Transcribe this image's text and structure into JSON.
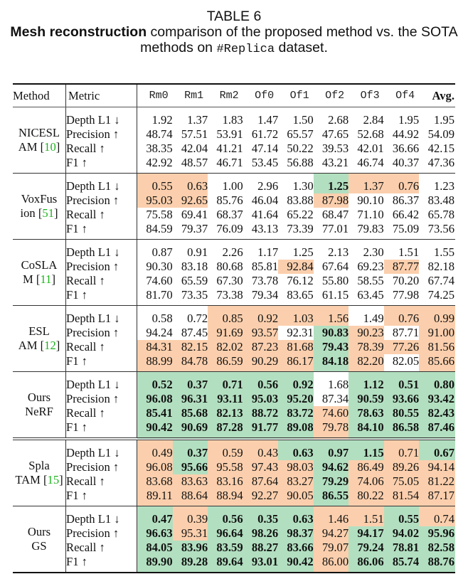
{
  "caption": {
    "table_label": "TABLE 6",
    "bold_part": "Mesh reconstruction",
    "text_part1": " comparison of the proposed method vs. the SOTA methods on ",
    "dataset": "#Replica",
    "text_part2": " dataset."
  },
  "header": {
    "method": "Method",
    "metric": "Metric",
    "scenes": [
      "Rm0",
      "Rm1",
      "Rm2",
      "Of0",
      "Of1",
      "Of2",
      "Of3",
      "Of4"
    ],
    "avg": "Avg."
  },
  "colors": {
    "orange_highlight": "#fbcfad",
    "green_highlight": "#b2dfc0",
    "citation": "#1db31d"
  },
  "metrics": [
    "Depth L1 ↓",
    "Precision ↑",
    "Recall ↑",
    "F1 ↑"
  ],
  "groups": [
    {
      "name_line1": "NICESL",
      "name_line2": "AM",
      "cite": "10",
      "rows": [
        [
          "1.92",
          "1.37",
          "1.83",
          "1.47",
          "1.50",
          "2.68",
          "2.84",
          "1.95",
          "1.95"
        ],
        [
          "48.74",
          "57.51",
          "53.91",
          "61.72",
          "65.57",
          "47.65",
          "52.68",
          "44.92",
          "54.09"
        ],
        [
          "38.35",
          "42.04",
          "41.21",
          "47.14",
          "50.22",
          "39.53",
          "42.01",
          "36.66",
          "42.15"
        ],
        [
          "42.92",
          "48.57",
          "46.71",
          "53.45",
          "56.88",
          "43.21",
          "46.74",
          "40.37",
          "47.36"
        ]
      ],
      "highlight": [
        "nnnnnnnnn",
        "nnnnnnnnn",
        "nnnnnnnnn",
        "nnnnnnnnn"
      ]
    },
    {
      "name_line1": "VoxFus",
      "name_line2": "ion",
      "cite": "51",
      "rows": [
        [
          "0.55",
          "0.63",
          "1.00",
          "2.96",
          "1.30",
          "1.25",
          "1.37",
          "0.76",
          "1.23"
        ],
        [
          "95.03",
          "92.65",
          "85.76",
          "46.04",
          "83.88",
          "87.98",
          "90.10",
          "86.37",
          "83.48"
        ],
        [
          "75.58",
          "69.41",
          "68.37",
          "41.64",
          "65.22",
          "68.47",
          "71.10",
          "66.42",
          "65.78"
        ],
        [
          "84.59",
          "79.37",
          "76.09",
          "43.13",
          "73.39",
          "77.01",
          "79.83",
          "75.09",
          "73.56"
        ]
      ],
      "highlight": [
        "oonnnGoon",
        "oonnnonnn",
        "nnnnnnnnn",
        "nnnnnnnnn"
      ]
    },
    {
      "name_line1": "CoSLA",
      "name_line2": "M",
      "cite": "11",
      "rows": [
        [
          "0.87",
          "0.91",
          "2.26",
          "1.17",
          "1.25",
          "2.13",
          "2.30",
          "1.51",
          "1.55"
        ],
        [
          "90.30",
          "83.18",
          "80.68",
          "85.81",
          "92.84",
          "67.64",
          "69.23",
          "87.77",
          "82.18"
        ],
        [
          "74.60",
          "65.59",
          "67.30",
          "73.78",
          "76.12",
          "55.80",
          "58.55",
          "70.20",
          "67.74"
        ],
        [
          "81.70",
          "73.35",
          "73.38",
          "79.34",
          "83.65",
          "61.15",
          "63.45",
          "77.98",
          "74.25"
        ]
      ],
      "highlight": [
        "nnnnnnnnn",
        "nnnnonnon",
        "nnnnnnnnn",
        "nnnnnnnnn"
      ]
    },
    {
      "name_line1": "ESL",
      "name_line2": "AM",
      "cite": "12",
      "rows": [
        [
          "0.58",
          "0.72",
          "0.85",
          "0.92",
          "1.03",
          "1.56",
          "1.49",
          "0.76",
          "0.99"
        ],
        [
          "94.24",
          "87.45",
          "91.69",
          "93.57",
          "92.31",
          "90.83",
          "90.23",
          "87.71",
          "91.00"
        ],
        [
          "84.31",
          "82.15",
          "82.02",
          "87.23",
          "81.68",
          "79.43",
          "78.39",
          "77.26",
          "81.56"
        ],
        [
          "88.99",
          "84.78",
          "86.59",
          "90.29",
          "86.17",
          "84.18",
          "82.20",
          "82.05",
          "85.66"
        ]
      ],
      "highlight": [
        "nnoooonoo",
        "nnoonGono",
        "oooooGooo",
        "oooooGono"
      ]
    },
    {
      "name_line1": "Ours",
      "name_line2": "NeRF",
      "cite": "",
      "rows": [
        [
          "0.52",
          "0.37",
          "0.71",
          "0.56",
          "0.92",
          "1.68",
          "1.12",
          "0.51",
          "0.80"
        ],
        [
          "96.08",
          "96.31",
          "93.11",
          "95.03",
          "95.20",
          "87.34",
          "90.59",
          "93.66",
          "93.42"
        ],
        [
          "85.41",
          "85.68",
          "82.13",
          "88.72",
          "83.72",
          "74.60",
          "78.63",
          "80.55",
          "82.43"
        ],
        [
          "90.42",
          "90.69",
          "87.28",
          "91.77",
          "89.08",
          "79.78",
          "84.10",
          "86.58",
          "87.46"
        ]
      ],
      "highlight": [
        "GGGGGnGGG",
        "GGGGGnGGG",
        "GGGGGoGGG",
        "GGGGGoGGG"
      ]
    },
    {
      "name_line1": "Spla",
      "name_line2": "TAM",
      "cite": "15",
      "rows": [
        [
          "0.49",
          "0.37",
          "0.59",
          "0.43",
          "0.63",
          "0.97",
          "1.15",
          "0.71",
          "0.67"
        ],
        [
          "96.08",
          "95.66",
          "95.58",
          "97.43",
          "98.03",
          "94.62",
          "86.49",
          "89.26",
          "94.14"
        ],
        [
          "83.68",
          "83.63",
          "83.16",
          "87.64",
          "83.27",
          "79.29",
          "74.06",
          "75.05",
          "81.22"
        ],
        [
          "89.11",
          "88.64",
          "88.94",
          "92.27",
          "90.05",
          "86.55",
          "80.22",
          "81.54",
          "87.17"
        ]
      ],
      "highlight": [
        "oGooGGGoG",
        "oGoooGooo",
        "oooooGooo",
        "oooooGooo"
      ]
    },
    {
      "name_line1": "Ours",
      "name_line2": "GS",
      "cite": "",
      "rows": [
        [
          "0.47",
          "0.39",
          "0.56",
          "0.35",
          "0.63",
          "1.46",
          "1.51",
          "0.55",
          "0.74"
        ],
        [
          "96.63",
          "95.31",
          "96.64",
          "98.26",
          "98.37",
          "94.27",
          "94.17",
          "94.02",
          "95.96"
        ],
        [
          "84.05",
          "83.96",
          "83.59",
          "88.27",
          "83.66",
          "79.07",
          "79.24",
          "78.81",
          "82.58"
        ],
        [
          "89.90",
          "89.28",
          "89.64",
          "93.01",
          "90.42",
          "86.00",
          "86.06",
          "85.74",
          "88.76"
        ]
      ],
      "highlight": [
        "GoGGGooGo",
        "GoGGGoGGG",
        "GGGGGoGGG",
        "GGGGGoGGG"
      ]
    }
  ]
}
